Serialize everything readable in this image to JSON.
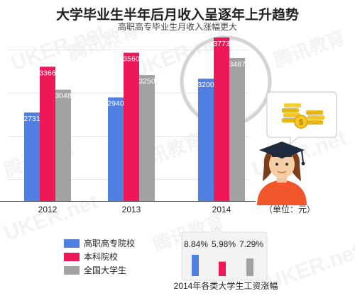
{
  "title": "大学毕业生半年后月收入呈逐年上升趋势",
  "subtitle": "高职高专毕业生月收入涨幅更大",
  "unit_label": "（单位：元）",
  "watermark_texts": [
    "腾讯教育",
    "UKER.net"
  ],
  "chart_data": [
    {
      "type": "bar",
      "title": "大学毕业生半年后月收入呈逐年上升趋势",
      "subtitle": "高职高专毕业生月收入涨幅更大",
      "categories": [
        "2012",
        "2013",
        "2014"
      ],
      "series": [
        {
          "name": "高职高专院校",
          "values": [
            2731,
            2940,
            3200
          ],
          "color": "#4f7fe0"
        },
        {
          "name": "本科院校",
          "values": [
            3366,
            3560,
            3773
          ],
          "color": "#ee1758"
        },
        {
          "name": "全国大学生",
          "values": [
            3048,
            3250,
            3487
          ],
          "color": "#a2a2a2"
        }
      ],
      "ylim": [
        1500,
        3900
      ],
      "xlabel": "",
      "ylabel": "",
      "grid": true,
      "legend": "bottom-left"
    },
    {
      "type": "bar",
      "title": "2014年各类大学生工资涨幅",
      "categories": [
        "高职高专院校",
        "本科院校",
        "全国大学生"
      ],
      "values": [
        8.84,
        5.98,
        7.29
      ],
      "value_labels": [
        "8.84%",
        "5.98%",
        "7.29%"
      ],
      "colors": [
        "#4f7fe0",
        "#ee1758",
        "#a2a2a2"
      ],
      "ylim": [
        0,
        10
      ]
    }
  ]
}
